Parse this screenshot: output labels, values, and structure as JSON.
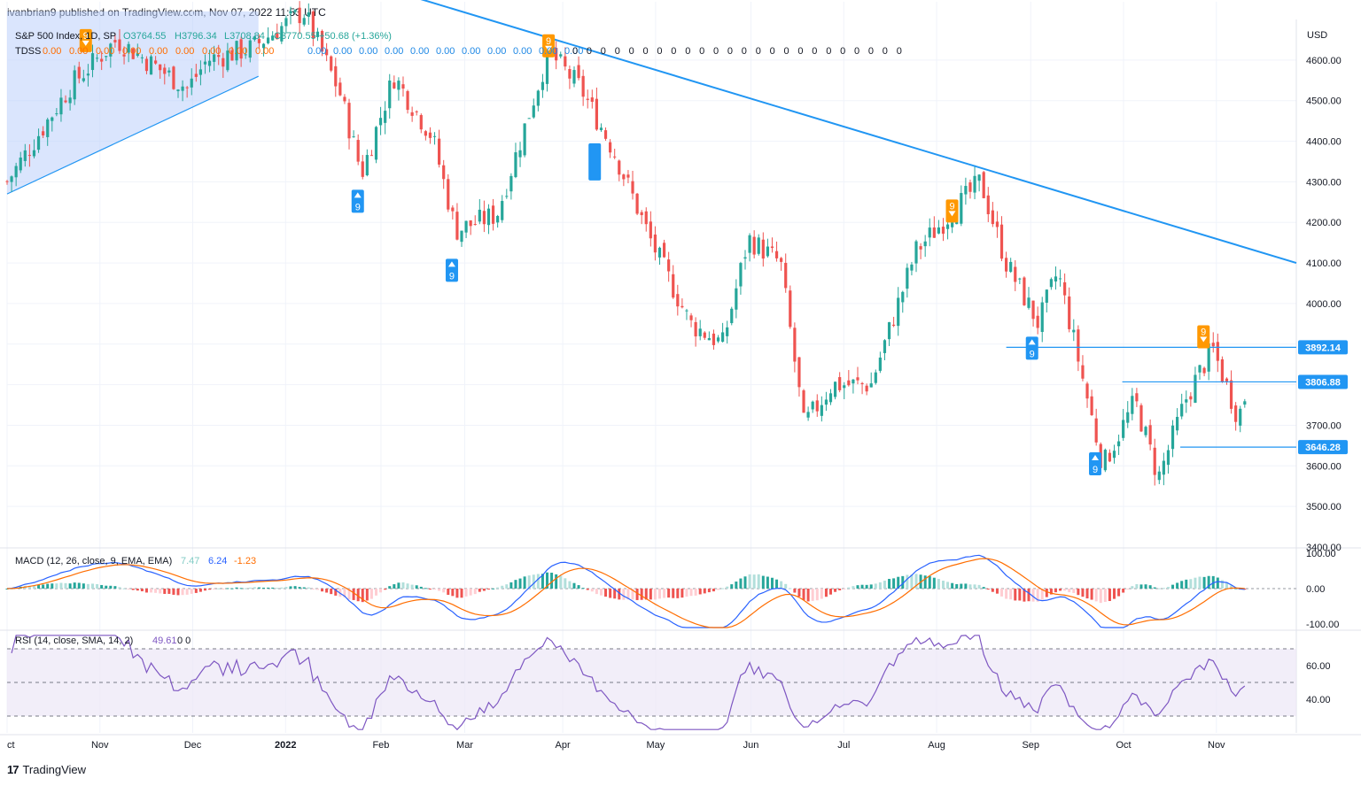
{
  "header": {
    "text": "ivanbrian9 published on TradingView.com, Nov 07, 2022 11:53 UTC"
  },
  "footer": {
    "brand": "TradingView",
    "logo_text": "17"
  },
  "price_axis": {
    "currency": "USD",
    "ticks": [
      "4600.00",
      "4500.00",
      "4400.00",
      "4300.00",
      "4200.00",
      "4100.00",
      "4000.00",
      "3700.00",
      "3600.00",
      "3500.00",
      "3400.00"
    ]
  },
  "macd_axis": {
    "ticks": [
      "100.00",
      "0.00",
      "-100.00"
    ]
  },
  "rsi_axis": {
    "ticks": [
      "60.00",
      "40.00"
    ]
  },
  "date_axis": {
    "labels": [
      "ct",
      "Nov",
      "Dec",
      "2022",
      "Feb",
      "Mar",
      "Apr",
      "May",
      "Jun",
      "Jul",
      "Aug",
      "Sep",
      "Oct",
      "Nov"
    ]
  },
  "legend": {
    "symbol": "S&P 500 Index, 1D, SP",
    "open": "O3764.55",
    "high": "H3796.34",
    "low": "L3708.84",
    "close": "C3770.55",
    "change": "+50.68 (+1.36%)",
    "tdss_label": "TDSS",
    "tdss_values": [
      "0.00",
      "0.00",
      "0.00",
      "0.00",
      "0.00",
      "0.00",
      "0.00",
      "0.00",
      "0.00",
      "0.00",
      "0.00",
      "0.00",
      "0.00",
      "0.00",
      "0.00",
      "0.00",
      "0.00",
      "0.00",
      "0.00",
      "0.00"
    ],
    "tdss_zero_count": 24,
    "tdss_zero_glyph": "0",
    "macd_label": "MACD (12, 26, close, 9, EMA, EMA)",
    "macd_hist": "7.47",
    "macd_line": "6.24",
    "macd_signal": "-1.23",
    "rsi_label": "RSI (14, close, SMA, 14, 2)",
    "rsi_value": "49.61",
    "rsi_extra": "0  0"
  },
  "price_tags": [
    {
      "value": "3892.14",
      "price": 3892.14
    },
    {
      "value": "3806.88",
      "price": 3806.88
    },
    {
      "value": "3646.28",
      "price": 3646.28
    }
  ],
  "td_markers": [
    {
      "label": "9",
      "dir": "up",
      "color": "#2196f3",
      "t": 0.272,
      "price": 4252
    },
    {
      "label": "9",
      "dir": "up",
      "color": "#2196f3",
      "t": 0.345,
      "price": 4082
    },
    {
      "label": "9",
      "dir": "down",
      "color": "#ff9800",
      "t": 0.42,
      "price": 4635
    },
    {
      "label": "9",
      "dir": "down",
      "color": "#ff9800",
      "t": 0.733,
      "price": 4228
    },
    {
      "label": "9",
      "dir": "up",
      "color": "#2196f3",
      "t": 0.795,
      "price": 3890
    },
    {
      "label": "9",
      "dir": "up",
      "color": "#2196f3",
      "t": 0.844,
      "price": 3605
    },
    {
      "label": "9",
      "dir": "down",
      "color": "#ff9800",
      "t": 0.928,
      "price": 3918
    },
    {
      "label": "9",
      "dir": "down",
      "color": "#ff9800",
      "t": 0.061,
      "price": 4648
    }
  ],
  "colors": {
    "up": "#26a69a",
    "down": "#ef5350",
    "trend": "#2196f3",
    "channel_fill": "#bbd0fb",
    "macd": "#2962ff",
    "signal": "#ff6d00",
    "rsi": "#7e57c2",
    "rsi_band": "#ede7f6"
  },
  "chart_data": {
    "type": "candlestick",
    "title": "S&P 500 Index, 1D, SP",
    "ylabel": "USD",
    "ylim": [
      3400,
      4700
    ],
    "x_start": "Oct 2021",
    "x_end": "Nov 2022",
    "anchors": [
      {
        "t": 0.0,
        "p": 4300
      },
      {
        "t": 0.05,
        "p": 4540
      },
      {
        "t": 0.085,
        "p": 4650
      },
      {
        "t": 0.14,
        "p": 4530
      },
      {
        "t": 0.155,
        "p": 4600
      },
      {
        "t": 0.19,
        "p": 4630
      },
      {
        "t": 0.23,
        "p": 4720
      },
      {
        "t": 0.258,
        "p": 4520
      },
      {
        "t": 0.275,
        "p": 4320
      },
      {
        "t": 0.3,
        "p": 4560
      },
      {
        "t": 0.33,
        "p": 4410
      },
      {
        "t": 0.348,
        "p": 4180
      },
      {
        "t": 0.38,
        "p": 4220
      },
      {
        "t": 0.42,
        "p": 4620
      },
      {
        "t": 0.445,
        "p": 4530
      },
      {
        "t": 0.47,
        "p": 4380
      },
      {
        "t": 0.5,
        "p": 4150
      },
      {
        "t": 0.53,
        "p": 3950
      },
      {
        "t": 0.555,
        "p": 3900
      },
      {
        "t": 0.575,
        "p": 4160
      },
      {
        "t": 0.6,
        "p": 4100
      },
      {
        "t": 0.618,
        "p": 3700
      },
      {
        "t": 0.64,
        "p": 3800
      },
      {
        "t": 0.67,
        "p": 3800
      },
      {
        "t": 0.705,
        "p": 4130
      },
      {
        "t": 0.755,
        "p": 4300
      },
      {
        "t": 0.775,
        "p": 4100
      },
      {
        "t": 0.8,
        "p": 3950
      },
      {
        "t": 0.815,
        "p": 4080
      },
      {
        "t": 0.85,
        "p": 3600
      },
      {
        "t": 0.875,
        "p": 3760
      },
      {
        "t": 0.893,
        "p": 3570
      },
      {
        "t": 0.915,
        "p": 3770
      },
      {
        "t": 0.935,
        "p": 3890
      },
      {
        "t": 0.955,
        "p": 3720
      },
      {
        "t": 0.96,
        "p": 3770
      }
    ],
    "trend_line": {
      "from": {
        "t": 0.3,
        "p": 4770
      },
      "to": {
        "t": 1.0,
        "p": 4100
      }
    },
    "channel": {
      "bottom_from": {
        "t": 0.0,
        "p": 4270
      },
      "bottom_to": {
        "t": 0.195,
        "p": 4560
      },
      "top_p": 4720
    },
    "horizontal_levels": [
      {
        "price": 3892.14,
        "t_start": 0.775
      },
      {
        "price": 3806.88,
        "t_start": 0.865
      },
      {
        "price": 3646.28,
        "t_start": 0.91
      }
    ],
    "macd": {
      "ylim": [
        -100,
        100
      ],
      "last_macd": 6.24,
      "last_signal": -1.23,
      "last_hist": 7.47
    },
    "rsi": {
      "ylim": [
        20,
        80
      ],
      "upper": 70,
      "middle": 50,
      "lower": 30,
      "last": 49.61
    }
  }
}
